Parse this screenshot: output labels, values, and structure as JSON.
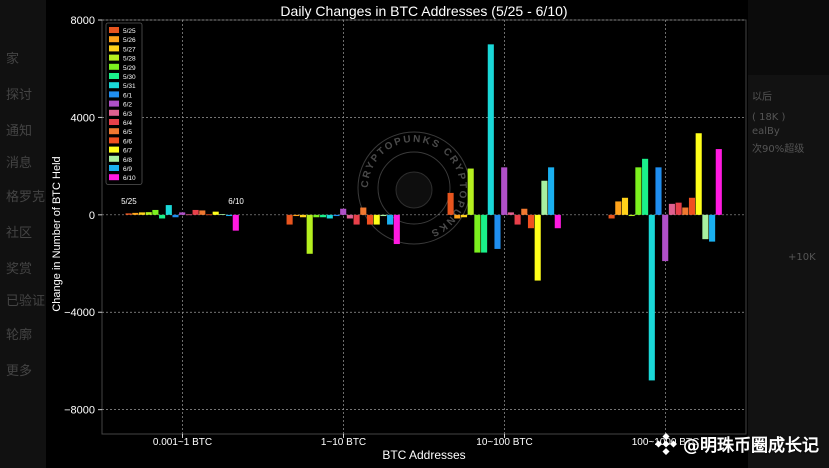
{
  "background_app": {
    "sidebar_items": [
      "家",
      "探讨",
      "通知",
      "消息",
      "格罗克",
      "社区",
      "奖赏",
      "已验证",
      "轮廓",
      "更多"
    ],
    "panel_texts": [
      "以后",
      "( 18K )",
      "ealBy",
      "次90%超级",
      "+10K"
    ]
  },
  "watermark": {
    "text": "@明珠币圈成长记"
  },
  "seal_text": "CRYPTOPUNKS CRYPTOPUNKS",
  "chart_data": {
    "type": "bar",
    "title": "Daily Changes in BTC Addresses (5/25 - 6/10)",
    "xlabel": "BTC Addresses",
    "ylabel": "Change in Number of BTC Held",
    "categories": [
      "0.001~1 BTC",
      "1~10 BTC",
      "10~100 BTC",
      "100~1000 BTC"
    ],
    "ylim": [
      -9000,
      8000
    ],
    "yticks": [
      -8000,
      -4000,
      0,
      4000,
      8000
    ],
    "grid": true,
    "legend_position": "top-left",
    "group_annotations": {
      "first": "5/25",
      "last": "6/10"
    },
    "series": [
      {
        "name": "5/25",
        "color": "#e8551e",
        "values": [
          60,
          -400,
          900,
          -150
        ]
      },
      {
        "name": "5/26",
        "color": "#ffa31a",
        "values": [
          80,
          -50,
          -150,
          550
        ]
      },
      {
        "name": "5/27",
        "color": "#ffd21a",
        "values": [
          100,
          -100,
          -100,
          700
        ]
      },
      {
        "name": "5/28",
        "color": "#b5f01f",
        "values": [
          110,
          -1600,
          1900,
          -50
        ]
      },
      {
        "name": "5/29",
        "color": "#7cf01f",
        "values": [
          200,
          -100,
          -1550,
          1950
        ]
      },
      {
        "name": "5/30",
        "color": "#1af08a",
        "values": [
          -150,
          -100,
          -1550,
          2300
        ]
      },
      {
        "name": "5/31",
        "color": "#1ad8d8",
        "values": [
          400,
          -150,
          7000,
          -6800
        ]
      },
      {
        "name": "6/1",
        "color": "#1f8ef0",
        "values": [
          -100,
          -50,
          -1400,
          1950
        ]
      },
      {
        "name": "6/2",
        "color": "#b050c8",
        "values": [
          100,
          250,
          1950,
          -1900
        ]
      },
      {
        "name": "6/3",
        "color": "#e06090",
        "values": [
          20,
          -150,
          100,
          450
        ]
      },
      {
        "name": "6/4",
        "color": "#e8404a",
        "values": [
          200,
          -400,
          -400,
          500
        ]
      },
      {
        "name": "6/5",
        "color": "#f07830",
        "values": [
          180,
          300,
          250,
          300
        ]
      },
      {
        "name": "6/6",
        "color": "#f05020",
        "values": [
          20,
          -400,
          -550,
          700
        ]
      },
      {
        "name": "6/7",
        "color": "#ffff1a",
        "values": [
          130,
          -400,
          -2700,
          3350
        ]
      },
      {
        "name": "6/8",
        "color": "#a8f0a0",
        "values": [
          30,
          -50,
          1400,
          -1000
        ]
      },
      {
        "name": "6/9",
        "color": "#1ab0f0",
        "values": [
          -50,
          -400,
          1950,
          -1100
        ]
      },
      {
        "name": "6/10",
        "color": "#ff1ae0",
        "values": [
          -650,
          -1200,
          -550,
          2700
        ]
      }
    ]
  }
}
